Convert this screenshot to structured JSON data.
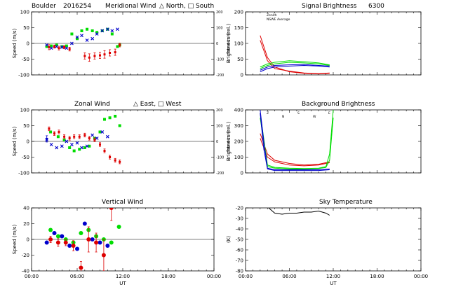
{
  "colors": {
    "north": "#00dd00",
    "south": "#0000cc",
    "red": "#dd0000",
    "black": "#000000"
  },
  "chart_data": [
    {
      "id": "meridional",
      "type": "scatter",
      "title_left": "Boulder",
      "title_code": "2016254",
      "title_main": "Meridional Wind",
      "title_legend": "△ North, □ South",
      "ylabel": "Speed (m/s)",
      "ylabel_right": "Speed (m/s)",
      "xlim": [
        0,
        24
      ],
      "ylim": [
        -100,
        100
      ],
      "yticks": [
        "100",
        "50",
        "0",
        "-50",
        "-100"
      ],
      "yticks_right": [
        "200",
        "100",
        "0",
        "-100",
        "-200"
      ],
      "xticks": [
        "",
        "",
        "",
        "",
        ""
      ],
      "series": [
        {
          "marker": "square",
          "color_key": "north",
          "x": [
            2.0,
            2.6,
            3.3,
            4.0,
            4.6,
            5.3,
            6.0,
            6.6,
            7.3,
            8.0,
            8.6,
            9.3,
            10.0,
            10.6,
            11.3,
            11.6
          ],
          "y": [
            -10,
            -8,
            -5,
            -10,
            -8,
            30,
            15,
            40,
            45,
            40,
            35,
            40,
            45,
            30,
            -10,
            -5
          ]
        },
        {
          "marker": "x",
          "color_key": "south",
          "x": [
            2.0,
            2.6,
            3.3,
            4.0,
            4.6,
            5.3,
            6.0,
            6.6,
            7.3,
            8.0,
            8.6,
            9.3,
            10.0,
            10.6,
            11.3
          ],
          "y": [
            -5,
            -15,
            -10,
            -12,
            -15,
            0,
            20,
            25,
            10,
            15,
            30,
            40,
            45,
            40,
            45
          ]
        },
        {
          "marker": "errbar",
          "color_key": "red",
          "x": [
            2.3,
            3.0,
            3.6,
            4.3,
            5.0,
            7.0,
            7.6,
            8.3,
            9.0,
            9.6,
            10.3,
            11.0,
            11.6
          ],
          "y": [
            -12,
            -10,
            -15,
            -12,
            -18,
            -40,
            -45,
            -40,
            -38,
            -35,
            -30,
            -28,
            -5
          ],
          "err": [
            8,
            5,
            6,
            5,
            6,
            10,
            12,
            10,
            10,
            12,
            10,
            10,
            6
          ]
        }
      ]
    },
    {
      "id": "signal",
      "type": "line",
      "title_main": "Signal Brightness",
      "title_code": "6300",
      "ylabel": "Brightness (rel.)",
      "xlim": [
        0,
        24
      ],
      "ylim": [
        0,
        200
      ],
      "yticks": [
        "200",
        "150",
        "100",
        "50",
        "0"
      ],
      "legend": [
        "Zenith",
        "NSWE Average"
      ],
      "series": [
        {
          "color_key": "red",
          "x": [
            2.0,
            3.0,
            4.0,
            6.0,
            8.0,
            10.0,
            11.5
          ],
          "y": [
            125,
            55,
            25,
            10,
            5,
            3,
            5
          ]
        },
        {
          "color_key": "red",
          "x": [
            2.0,
            3.0,
            4.0,
            6.0,
            8.0,
            10.0,
            11.5
          ],
          "y": [
            110,
            45,
            20,
            12,
            6,
            4,
            6
          ]
        },
        {
          "color_key": "north",
          "x": [
            2.0,
            3.0,
            4.0,
            6.0,
            8.0,
            10.0,
            11.5
          ],
          "y": [
            20,
            30,
            35,
            40,
            38,
            35,
            30
          ]
        },
        {
          "color_key": "north",
          "x": [
            2.0,
            3.0,
            4.0,
            6.0,
            8.0,
            10.0,
            11.5
          ],
          "y": [
            25,
            35,
            40,
            45,
            42,
            38,
            32
          ]
        },
        {
          "color_key": "south",
          "x": [
            2.0,
            3.0,
            4.0,
            6.0,
            8.0,
            10.0,
            11.5
          ],
          "y": [
            10,
            20,
            25,
            28,
            30,
            28,
            25
          ]
        },
        {
          "color_key": "south",
          "x": [
            2.0,
            3.0,
            4.0,
            6.0,
            8.0,
            10.0,
            11.5
          ],
          "y": [
            15,
            25,
            30,
            32,
            33,
            30,
            28
          ]
        }
      ]
    },
    {
      "id": "zonal",
      "type": "scatter",
      "title_main": "Zonal Wind",
      "title_legend": "△ East, □ West",
      "ylabel": "Speed (m/s)",
      "ylabel_right": "Speed (m/s)",
      "xlim": [
        0,
        24
      ],
      "ylim": [
        -100,
        100
      ],
      "yticks": [
        "100",
        "50",
        "0",
        "-50",
        "-100"
      ],
      "yticks_right": [
        "200",
        "100",
        "0",
        "-100",
        "-200"
      ],
      "xticks": [
        "",
        "",
        "",
        "",
        ""
      ],
      "series": [
        {
          "marker": "square",
          "color_key": "north",
          "x": [
            2.5,
            3.5,
            4.3,
            5.0,
            5.6,
            6.3,
            7.0,
            7.6,
            8.3,
            9.0,
            9.6,
            10.3,
            11.0,
            11.6
          ],
          "y": [
            30,
            15,
            5,
            -20,
            -30,
            -25,
            -20,
            -15,
            10,
            30,
            70,
            75,
            80,
            50
          ]
        },
        {
          "marker": "x",
          "color_key": "south",
          "x": [
            2.0,
            2.6,
            3.3,
            4.0,
            4.6,
            5.3,
            6.0,
            6.6,
            7.3,
            8.0,
            8.6,
            9.3,
            10.0
          ],
          "y": [
            5,
            -10,
            -20,
            -15,
            0,
            -10,
            -5,
            -20,
            -15,
            20,
            10,
            30,
            15
          ]
        },
        {
          "marker": "errbar",
          "color_key": "red",
          "x": [
            2.3,
            3.0,
            3.6,
            4.3,
            5.0,
            5.6,
            6.3,
            7.0,
            7.6,
            8.3,
            9.0,
            9.6,
            10.3,
            11.0,
            11.6
          ],
          "y": [
            40,
            25,
            30,
            15,
            10,
            15,
            15,
            20,
            10,
            5,
            -10,
            -30,
            -50,
            -60,
            -65
          ]
        },
        {
          "marker": "errbar",
          "color_key": "south",
          "x": [
            2.0
          ],
          "y": [
            8
          ],
          "err": [
            10
          ]
        }
      ]
    },
    {
      "id": "background",
      "type": "line",
      "title_main": "Background Brightness",
      "ylabel": "Brightness (rel.)",
      "xlim": [
        0,
        24
      ],
      "ylim": [
        0,
        400
      ],
      "yticks": [
        "400",
        "300",
        "200",
        "100",
        "0"
      ],
      "legend": [
        "Z",
        "N",
        "S",
        "W",
        "E"
      ],
      "series": [
        {
          "color_key": "red",
          "x": [
            2.0,
            3.0,
            4.0,
            6.0,
            8.0,
            10.0,
            11.5
          ],
          "y": [
            250,
            120,
            80,
            60,
            50,
            55,
            70
          ]
        },
        {
          "color_key": "red",
          "x": [
            2.0,
            3.0,
            4.0,
            6.0,
            8.0,
            10.0,
            11.5
          ],
          "y": [
            220,
            100,
            70,
            50,
            45,
            50,
            65
          ]
        },
        {
          "color_key": "north",
          "x": [
            2.0,
            3.0,
            4.0,
            6.0,
            8.0,
            10.0,
            11.0,
            11.5,
            12.0
          ],
          "y": [
            380,
            50,
            35,
            30,
            28,
            30,
            40,
            120,
            400
          ]
        },
        {
          "color_key": "north",
          "x": [
            2.0,
            3.0,
            4.0,
            6.0,
            8.0,
            10.0,
            11.0,
            11.5,
            12.0
          ],
          "y": [
            350,
            40,
            30,
            25,
            25,
            28,
            35,
            80,
            350
          ]
        },
        {
          "color_key": "south",
          "x": [
            2.0,
            2.5,
            3.0,
            4.0,
            6.0,
            8.0,
            10.0,
            11.5
          ],
          "y": [
            400,
            200,
            30,
            20,
            20,
            20,
            20,
            25
          ]
        },
        {
          "color_key": "south",
          "x": [
            2.0,
            2.5,
            3.0,
            4.0,
            6.0,
            8.0,
            10.0,
            11.5
          ],
          "y": [
            380,
            150,
            25,
            15,
            15,
            15,
            15,
            20
          ]
        }
      ]
    },
    {
      "id": "vertical",
      "type": "scatter",
      "title_main": "Vertical Wind",
      "ylabel": "Speed (m/s)",
      "xlabel": "UT",
      "xlim": [
        0,
        24
      ],
      "ylim": [
        -50,
        50
      ],
      "yticks": [
        "40",
        "20",
        "0",
        "-20",
        "-40"
      ],
      "xticks": [
        "00:00",
        "06:00",
        "12:00",
        "18:00",
        "00:00"
      ],
      "series": [
        {
          "marker": "dot",
          "color_key": "north",
          "x": [
            2.5,
            3.5,
            4.5,
            5.5,
            6.5,
            7.5,
            8.5,
            9.5,
            10.5,
            11.5
          ],
          "y": [
            15,
            5,
            0,
            -5,
            10,
            15,
            5,
            0,
            -5,
            20
          ]
        },
        {
          "marker": "dot",
          "color_key": "south",
          "x": [
            2.0,
            3.0,
            4.0,
            5.0,
            6.0,
            7.0,
            8.0,
            9.0,
            10.0
          ],
          "y": [
            -5,
            10,
            5,
            -10,
            -15,
            25,
            0,
            -5,
            -10
          ]
        },
        {
          "marker": "errdot",
          "color_key": "red",
          "x": [
            2.5,
            3.5,
            4.5,
            5.5,
            6.5,
            7.5,
            8.5,
            9.5,
            10.5
          ],
          "y": [
            0,
            -5,
            -5,
            -10,
            -45,
            0,
            -5,
            -25,
            50
          ],
          "err": [
            5,
            6,
            5,
            8,
            10,
            20,
            15,
            25,
            20
          ]
        }
      ]
    },
    {
      "id": "skytemp",
      "type": "line",
      "title_main": "Sky Temperature",
      "ylabel": "(K)",
      "xlabel": "UT",
      "xlim": [
        0,
        24
      ],
      "ylim": [
        -80,
        -20
      ],
      "yticks": [
        "-20",
        "-30",
        "-40",
        "-50",
        "-60",
        "-70",
        "-80"
      ],
      "xticks": [
        "00:00",
        "06:00",
        "12:00",
        "18:00",
        "00:00"
      ],
      "series": [
        {
          "color_key": "black",
          "x": [
            3.0,
            4.0,
            5.0,
            6.0,
            7.0,
            8.0,
            9.0,
            10.0,
            11.0,
            11.5
          ],
          "y": [
            -19,
            -25,
            -26,
            -25,
            -25,
            -24,
            -24,
            -23,
            -25,
            -27
          ]
        }
      ]
    }
  ]
}
